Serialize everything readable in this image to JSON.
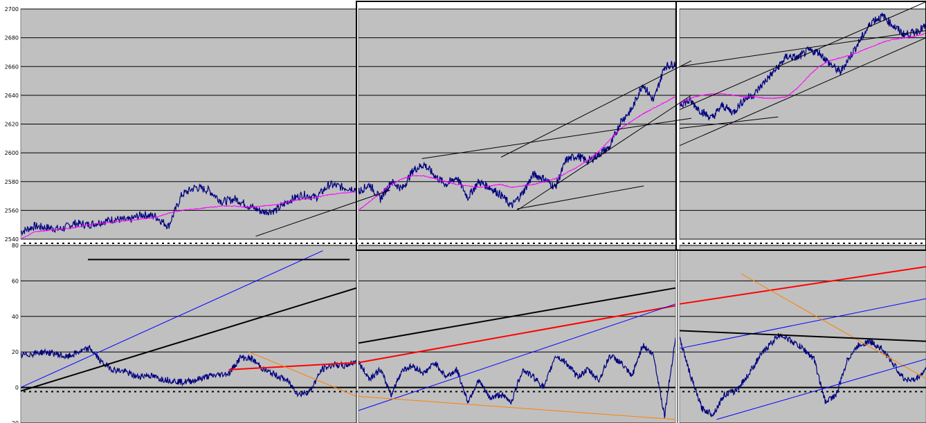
{
  "chart_data": [
    {
      "type": "line",
      "panel": "top-left",
      "ylim": [
        2540,
        2700
      ],
      "yticks": [
        "2700",
        "2680",
        "2660",
        "2640",
        "2620",
        "2600",
        "2580",
        "2560",
        "2540"
      ],
      "series": [
        {
          "color": "#00007f",
          "values": [
            2545,
            2549,
            2548,
            2547,
            2551,
            2550,
            2552,
            2554,
            2553,
            2557,
            2556,
            2549,
            2571,
            2576,
            2574,
            2566,
            2568,
            2563,
            2559,
            2560,
            2567,
            2571,
            2569,
            2578,
            2576,
            2575
          ]
        },
        {
          "color": "#ff00ff",
          "values": [
            2540,
            2545,
            2546,
            2547,
            2548,
            2550,
            2551,
            2552,
            2553,
            2554,
            2555,
            2558,
            2560,
            2561,
            2562,
            2563,
            2563,
            2562,
            2563,
            2564,
            2566,
            2568,
            2569,
            2571,
            2572,
            2573
          ]
        }
      ],
      "trendlines": [
        {
          "color": "#000000",
          "start": [
            0.7,
            2542
          ],
          "end": [
            1.1,
            2574
          ]
        }
      ]
    },
    {
      "type": "line",
      "panel": "top-middle",
      "ylim": [
        2540,
        2700
      ],
      "series": [
        {
          "color": "#00007f",
          "values": [
            2573,
            2578,
            2568,
            2580,
            2575,
            2588,
            2592,
            2584,
            2578,
            2583,
            2569,
            2580,
            2576,
            2571,
            2563,
            2572,
            2585,
            2582,
            2576,
            2595,
            2598,
            2594,
            2599,
            2604,
            2622,
            2630,
            2648,
            2636,
            2660,
            2662
          ]
        },
        {
          "color": "#ff00ff",
          "values": [
            2560,
            2566,
            2572,
            2578,
            2582,
            2584,
            2584,
            2582,
            2580,
            2578,
            2577,
            2576,
            2577,
            2578,
            2576,
            2577,
            2578,
            2580,
            2582,
            2586,
            2590,
            2595,
            2601,
            2609,
            2617,
            2622,
            2627,
            2631,
            2635,
            2639
          ]
        }
      ],
      "trendlines": [
        {
          "color": "#000000",
          "start": [
            0.2,
            2596
          ],
          "end": [
            1.05,
            2624
          ]
        },
        {
          "color": "#000000",
          "start": [
            0.45,
            2597
          ],
          "end": [
            1.05,
            2664
          ]
        },
        {
          "color": "#000000",
          "start": [
            0.5,
            2560
          ],
          "end": [
            1.05,
            2640
          ]
        },
        {
          "color": "#000000",
          "start": [
            0.5,
            2561
          ],
          "end": [
            0.9,
            2577
          ]
        }
      ]
    },
    {
      "type": "line",
      "panel": "top-right",
      "ylim": [
        2540,
        2700
      ],
      "series": [
        {
          "color": "#00007f",
          "values": [
            2634,
            2636,
            2629,
            2624,
            2633,
            2628,
            2637,
            2641,
            2650,
            2658,
            2667,
            2666,
            2671,
            2670,
            2662,
            2656,
            2668,
            2680,
            2692,
            2695,
            2688,
            2682,
            2684,
            2688
          ]
        },
        {
          "color": "#ff00ff",
          "values": [
            2634,
            2638,
            2640,
            2641,
            2641,
            2640,
            2639,
            2639,
            2638,
            2638,
            2639,
            2645,
            2653,
            2660,
            2664,
            2666,
            2668,
            2671,
            2674,
            2677,
            2679,
            2680,
            2681,
            2683
          ]
        }
      ],
      "trendlines": [
        {
          "color": "#000000",
          "start": [
            0.0,
            2630
          ],
          "end": [
            1.0,
            2705
          ]
        },
        {
          "color": "#000000",
          "start": [
            0.0,
            2660
          ],
          "end": [
            1.0,
            2685
          ]
        },
        {
          "color": "#000000",
          "start": [
            0.0,
            2605
          ],
          "end": [
            1.0,
            2680
          ]
        },
        {
          "color": "#000000",
          "start": [
            0.0,
            2617
          ],
          "end": [
            0.4,
            2625
          ]
        }
      ]
    },
    {
      "type": "line",
      "panel": "bottom-left",
      "ylim": [
        -20,
        80
      ],
      "yticks": [
        "80",
        "60",
        "40",
        "20",
        "0",
        "-20"
      ],
      "series": [
        {
          "color": "#00007f",
          "values": [
            18,
            19,
            20,
            19,
            17,
            20,
            22,
            14,
            10,
            9,
            6,
            7,
            5,
            4,
            3,
            4,
            6,
            7,
            8,
            17,
            16,
            10,
            7,
            4,
            -4,
            -2,
            10,
            13,
            12,
            15
          ]
        }
      ],
      "trendlines": [
        {
          "color": "#000000",
          "start": [
            0.0,
            -2
          ],
          "end": [
            1.0,
            56
          ]
        },
        {
          "color": "#0000ff",
          "start": [
            0.0,
            0
          ],
          "end": [
            0.9,
            77
          ]
        },
        {
          "color": "#000000",
          "start": [
            0.2,
            72
          ],
          "end": [
            0.98,
            72
          ]
        },
        {
          "color": "#ff0000",
          "start": [
            0.62,
            10
          ],
          "end": [
            1.0,
            14
          ]
        },
        {
          "color": "#ff8000",
          "start": [
            0.68,
            20
          ],
          "end": [
            1.0,
            -5
          ]
        }
      ]
    },
    {
      "type": "line",
      "panel": "bottom-middle",
      "ylim": [
        -20,
        80
      ],
      "series": [
        {
          "color": "#00007f",
          "values": [
            14,
            5,
            10,
            -4,
            10,
            12,
            8,
            14,
            6,
            10,
            -8,
            4,
            -6,
            -4,
            -8,
            10,
            6,
            0,
            18,
            14,
            6,
            10,
            4,
            18,
            14,
            6,
            24,
            18,
            -16,
            28
          ]
        }
      ],
      "trendlines": [
        {
          "color": "#ff0000",
          "start": [
            0.0,
            14
          ],
          "end": [
            1.0,
            46
          ]
        },
        {
          "color": "#000000",
          "start": [
            0.0,
            25
          ],
          "end": [
            1.0,
            56
          ]
        },
        {
          "color": "#0000ff",
          "start": [
            0.0,
            -13
          ],
          "end": [
            1.0,
            47
          ]
        },
        {
          "color": "#ff8000",
          "start": [
            0.0,
            -5
          ],
          "end": [
            1.0,
            -18
          ]
        }
      ]
    },
    {
      "type": "line",
      "panel": "bottom-right",
      "ylim": [
        -20,
        80
      ],
      "series": [
        {
          "color": "#00007f",
          "values": [
            28,
            6,
            -12,
            -15,
            -4,
            -2,
            6,
            16,
            24,
            30,
            26,
            22,
            16,
            -8,
            -4,
            16,
            24,
            26,
            22,
            14,
            5,
            4,
            10
          ]
        }
      ],
      "trendlines": [
        {
          "color": "#ff0000",
          "start": [
            0.0,
            47
          ],
          "end": [
            1.0,
            68
          ]
        },
        {
          "color": "#0000ff",
          "start": [
            0.0,
            22
          ],
          "end": [
            1.0,
            50
          ]
        },
        {
          "color": "#ff8000",
          "start": [
            0.25,
            64
          ],
          "end": [
            1.0,
            5
          ]
        },
        {
          "color": "#0000ff",
          "start": [
            0.15,
            -18
          ],
          "end": [
            1.0,
            16
          ]
        },
        {
          "color": "#000000",
          "start": [
            0.0,
            32
          ],
          "end": [
            1.0,
            26
          ]
        }
      ]
    }
  ]
}
